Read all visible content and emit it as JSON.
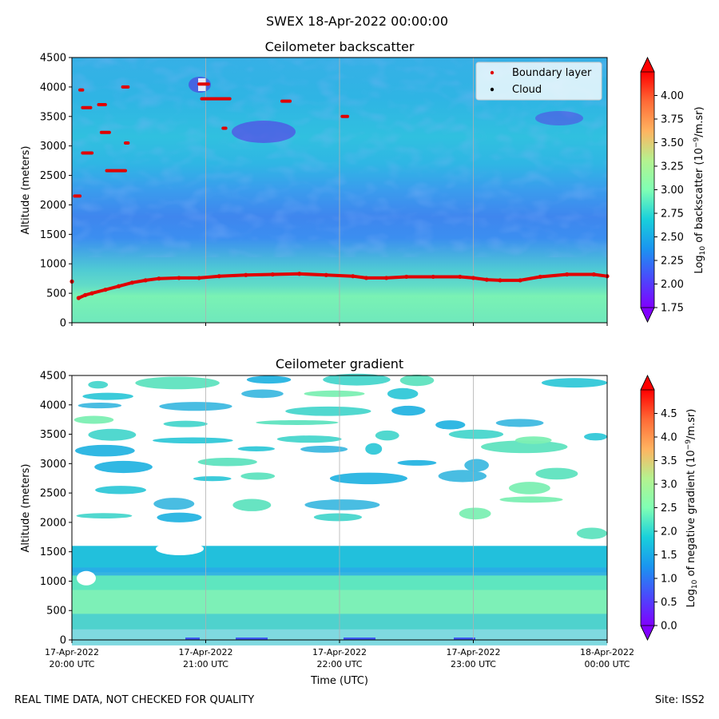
{
  "figure_title": "SWEX 18-Apr-2022 00:00:00",
  "footer": {
    "disclaimer": "REAL TIME DATA, NOT CHECKED FOR QUALITY",
    "site": "Site: ISS2"
  },
  "colors": {
    "boundary_layer": "#e00000",
    "cloud": "#000000",
    "gridline": "#b0b0b0"
  },
  "chart_data": [
    {
      "type": "heatmap",
      "title": "Ceilometer backscatter",
      "ylabel": "Altitude (meters)",
      "ylim": [
        0,
        4500
      ],
      "yticks": [
        "0",
        "500",
        "1000",
        "1500",
        "2000",
        "2500",
        "3000",
        "3500",
        "4000",
        "4500"
      ],
      "x_range_hours": [
        20,
        24
      ],
      "grid": "vertical",
      "legend": {
        "placement": "top-right",
        "entries": [
          {
            "label": "Boundary layer",
            "color": "#e00000"
          },
          {
            "label": "Cloud",
            "color": "#000000"
          }
        ]
      },
      "colorbar": {
        "label_prefix": "Log",
        "label_sub": "10",
        "label_mid": " of backscatter (10",
        "label_sup": "−9",
        "label_suffix": "/m.sr)",
        "range": [
          1.75,
          4.25
        ],
        "ticks": [
          "1.75",
          "2.00",
          "2.25",
          "2.50",
          "2.75",
          "3.00",
          "3.25",
          "3.50",
          "3.75",
          "4.00"
        ]
      },
      "boundary_layer_series": {
        "name": "Boundary layer",
        "hours": [
          20.0,
          20.05,
          20.1,
          20.15,
          20.25,
          20.35,
          20.45,
          20.55,
          20.65,
          20.8,
          20.95,
          21.1,
          21.3,
          21.5,
          21.7,
          21.9,
          22.1,
          22.2,
          22.35,
          22.5,
          22.7,
          22.9,
          23.0,
          23.1,
          23.2,
          23.35,
          23.5,
          23.7,
          23.9,
          24.0
        ],
        "altitude_m": [
          700,
          420,
          470,
          500,
          560,
          620,
          680,
          720,
          750,
          760,
          760,
          790,
          810,
          820,
          830,
          810,
          790,
          760,
          760,
          780,
          780,
          780,
          760,
          730,
          720,
          720,
          780,
          820,
          820,
          790
        ]
      },
      "aloft_detections": [
        {
          "h0": 20.02,
          "h1": 20.06,
          "alt": 2150
        },
        {
          "h0": 20.06,
          "h1": 20.08,
          "alt": 3950
        },
        {
          "h0": 20.08,
          "h1": 20.14,
          "alt": 3650
        },
        {
          "h0": 20.08,
          "h1": 20.15,
          "alt": 2880
        },
        {
          "h0": 20.2,
          "h1": 20.25,
          "alt": 3700
        },
        {
          "h0": 20.22,
          "h1": 20.28,
          "alt": 3230
        },
        {
          "h0": 20.26,
          "h1": 20.4,
          "alt": 2580
        },
        {
          "h0": 20.38,
          "h1": 20.42,
          "alt": 4000
        },
        {
          "h0": 20.4,
          "h1": 20.42,
          "alt": 3050
        },
        {
          "h0": 20.95,
          "h1": 21.02,
          "alt": 4050
        },
        {
          "h0": 20.97,
          "h1": 21.18,
          "alt": 3800
        },
        {
          "h0": 21.13,
          "h1": 21.15,
          "alt": 3300
        },
        {
          "h0": 21.57,
          "h1": 21.63,
          "alt": 3760
        },
        {
          "h0": 22.02,
          "h1": 22.06,
          "alt": 3500
        }
      ]
    },
    {
      "type": "heatmap",
      "title": "Ceilometer gradient",
      "ylabel": "Altitude (meters)",
      "xlabel": "Time (UTC)",
      "ylim": [
        0,
        4500
      ],
      "yticks": [
        "0",
        "500",
        "1000",
        "1500",
        "2000",
        "2500",
        "3000",
        "3500",
        "4000",
        "4500"
      ],
      "x_range_hours": [
        20,
        24
      ],
      "grid": "vertical",
      "xticks": [
        {
          "hour": 20,
          "date": "17-Apr-2022",
          "time": "20:00 UTC"
        },
        {
          "hour": 21,
          "date": "17-Apr-2022",
          "time": "21:00 UTC"
        },
        {
          "hour": 22,
          "date": "17-Apr-2022",
          "time": "22:00 UTC"
        },
        {
          "hour": 23,
          "date": "17-Apr-2022",
          "time": "23:00 UTC"
        },
        {
          "hour": 24,
          "date": "18-Apr-2022",
          "time": "00:00 UTC"
        }
      ],
      "colorbar": {
        "label_prefix": "Log",
        "label_sub": "10",
        "label_mid": " of negative gradient (10",
        "label_sup": "−9",
        "label_suffix": "/m.sr)",
        "range": [
          0,
          5
        ],
        "ticks": [
          "0.0",
          "0.5",
          "1.0",
          "1.5",
          "2.0",
          "2.5",
          "3.0",
          "3.5",
          "4.0",
          "4.5"
        ]
      },
      "valid_floor_m": 180
    }
  ]
}
